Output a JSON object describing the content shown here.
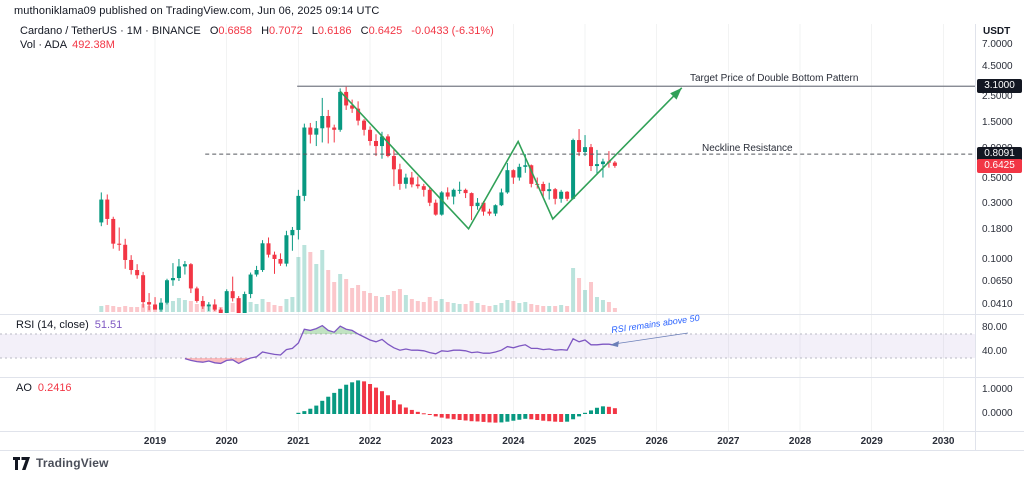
{
  "header": {
    "published": "muthoniklama09 published on TradingView.com, Jun 06, 2025 09:14 UTC",
    "symbol": "Cardano / TetherUS · 1M · BINANCE",
    "ohlc": {
      "o": {
        "label": "O",
        "value": "0.6858"
      },
      "h": {
        "label": "H",
        "value": "0.7072"
      },
      "l": {
        "label": "L",
        "value": "0.6186"
      },
      "c": {
        "label": "C",
        "value": "0.6425"
      }
    },
    "change": "-0.0433 (-6.31%)",
    "vol_label": "Vol · ADA",
    "vol_value": "492.38M"
  },
  "annotations": {
    "target": "Target Price of Double Bottom Pattern",
    "neckline": "Neckline Resistance"
  },
  "panes": {
    "rsi": {
      "label": "RSI (14, close)",
      "value": "51.51",
      "note": "RSI remains above 50",
      "axis": [
        {
          "text": "80.00",
          "v": 80
        },
        {
          "text": "40.00",
          "v": 40
        }
      ]
    },
    "ao": {
      "label": "AO",
      "value": "0.2416",
      "axis": [
        {
          "text": "1.0000",
          "v": 1
        },
        {
          "text": "0.0000",
          "v": 0
        }
      ]
    }
  },
  "price_axis": {
    "currency": "USDT",
    "labels": [
      {
        "text": "7.0000",
        "p": 7.0
      },
      {
        "text": "4.5000",
        "p": 4.5
      },
      {
        "text": "2.5000",
        "p": 2.5
      },
      {
        "text": "1.5000",
        "p": 1.5
      },
      {
        "text": "0.9000",
        "p": 0.9
      },
      {
        "text": "0.5000",
        "p": 0.5
      },
      {
        "text": "0.3000",
        "p": 0.3
      },
      {
        "text": "0.1800",
        "p": 0.18
      },
      {
        "text": "0.1000",
        "p": 0.1
      },
      {
        "text": "0.0650",
        "p": 0.065
      },
      {
        "text": "0.0410",
        "p": 0.041
      }
    ],
    "badges": [
      {
        "text": "3.1000",
        "p": 3.1,
        "bg": "#131722"
      },
      {
        "text": "0.8091",
        "p": 0.8091,
        "bg": "#131722"
      },
      {
        "text": "0.6425",
        "p": 0.6425,
        "bg": "#f23645"
      }
    ]
  },
  "x_axis": {
    "years": [
      "2019",
      "2020",
      "2021",
      "2022",
      "2023",
      "2024",
      "2025",
      "2026",
      "2027",
      "2028",
      "2029",
      "2030"
    ]
  },
  "footer": {
    "brand": "TradingView"
  },
  "colors": {
    "up": "#089981",
    "down": "#f23645",
    "vol_up": "rgba(8,153,129,0.28)",
    "vol_down": "rgba(242,54,69,0.28)",
    "rsi_line": "#7e57c2",
    "rsi_band": "rgba(126,87,194,0.09)",
    "rsi_over": "rgba(76,175,80,0.35)",
    "rsi_under": "rgba(247,124,128,0.5)",
    "drawing_green": "#31a158",
    "note_blue": "#2962ff",
    "target_line": "#787b86",
    "neckline_line": "#56595f",
    "grid": "rgba(42,46,57,0.06)",
    "separator": "#e0e3eb"
  },
  "chart_data": {
    "type": "candlestick",
    "symbol": "ADAUSDT",
    "interval": "1M",
    "scale": "log",
    "start_month": "2018-04",
    "x_years": [
      2019,
      2020,
      2021,
      2022,
      2023,
      2024,
      2025,
      2026,
      2027,
      2028,
      2029,
      2030
    ],
    "levels": {
      "target_price": 3.1,
      "neckline": 0.8091,
      "last_close": 0.6425
    },
    "candles": [
      [
        0.21,
        0.38,
        0.195,
        0.33
      ],
      [
        0.33,
        0.365,
        0.2,
        0.225
      ],
      [
        0.225,
        0.235,
        0.125,
        0.138
      ],
      [
        0.138,
        0.19,
        0.12,
        0.135
      ],
      [
        0.135,
        0.152,
        0.084,
        0.1
      ],
      [
        0.1,
        0.11,
        0.075,
        0.082
      ],
      [
        0.082,
        0.092,
        0.069,
        0.074
      ],
      [
        0.074,
        0.079,
        0.039,
        0.0435
      ],
      [
        0.0435,
        0.052,
        0.037,
        0.0415
      ],
      [
        0.0415,
        0.048,
        0.038,
        0.0375
      ],
      [
        0.0375,
        0.047,
        0.036,
        0.043
      ],
      [
        0.043,
        0.069,
        0.0415,
        0.067
      ],
      [
        0.067,
        0.094,
        0.06,
        0.07
      ],
      [
        0.07,
        0.102,
        0.066,
        0.088
      ],
      [
        0.088,
        0.098,
        0.075,
        0.092
      ],
      [
        0.092,
        0.094,
        0.052,
        0.057
      ],
      [
        0.057,
        0.059,
        0.043,
        0.0445
      ],
      [
        0.0445,
        0.049,
        0.038,
        0.04
      ],
      [
        0.04,
        0.0435,
        0.0365,
        0.0415
      ],
      [
        0.0415,
        0.046,
        0.0365,
        0.0375
      ],
      [
        0.0375,
        0.039,
        0.031,
        0.035
      ],
      [
        0.035,
        0.056,
        0.032,
        0.054
      ],
      [
        0.054,
        0.072,
        0.044,
        0.047
      ],
      [
        0.047,
        0.049,
        0.019,
        0.0305
      ],
      [
        0.0305,
        0.0535,
        0.029,
        0.051
      ],
      [
        0.051,
        0.078,
        0.047,
        0.075
      ],
      [
        0.075,
        0.089,
        0.072,
        0.082
      ],
      [
        0.082,
        0.148,
        0.079,
        0.139
      ],
      [
        0.139,
        0.156,
        0.105,
        0.111
      ],
      [
        0.111,
        0.118,
        0.076,
        0.102
      ],
      [
        0.102,
        0.114,
        0.089,
        0.093
      ],
      [
        0.093,
        0.178,
        0.088,
        0.163
      ],
      [
        0.163,
        0.192,
        0.12,
        0.181
      ],
      [
        0.181,
        0.4,
        0.15,
        0.355
      ],
      [
        0.355,
        1.48,
        0.32,
        1.37
      ],
      [
        1.37,
        1.5,
        1.0,
        1.19
      ],
      [
        1.19,
        1.56,
        0.95,
        1.35
      ],
      [
        1.35,
        2.46,
        1.02,
        1.72
      ],
      [
        1.72,
        1.94,
        1.0,
        1.37
      ],
      [
        1.37,
        1.45,
        1.02,
        1.31
      ],
      [
        1.31,
        2.97,
        1.26,
        2.77
      ],
      [
        2.77,
        3.1,
        1.94,
        2.12
      ],
      [
        2.12,
        2.38,
        1.83,
        1.99
      ],
      [
        1.99,
        2.3,
        1.43,
        1.57
      ],
      [
        1.57,
        1.62,
        1.17,
        1.31
      ],
      [
        1.31,
        1.4,
        0.96,
        1.05
      ],
      [
        1.05,
        1.2,
        0.78,
        0.95
      ],
      [
        0.95,
        1.26,
        0.74,
        1.15
      ],
      [
        1.15,
        1.2,
        0.76,
        0.78
      ],
      [
        0.78,
        0.9,
        0.43,
        0.6
      ],
      [
        0.6,
        0.67,
        0.4,
        0.45
      ],
      [
        0.45,
        0.55,
        0.41,
        0.51
      ],
      [
        0.51,
        0.57,
        0.42,
        0.445
      ],
      [
        0.445,
        0.52,
        0.41,
        0.43
      ],
      [
        0.43,
        0.45,
        0.35,
        0.4
      ],
      [
        0.4,
        0.42,
        0.29,
        0.31
      ],
      [
        0.31,
        0.33,
        0.24,
        0.245
      ],
      [
        0.245,
        0.39,
        0.24,
        0.38
      ],
      [
        0.38,
        0.42,
        0.33,
        0.35
      ],
      [
        0.35,
        0.41,
        0.3,
        0.4
      ],
      [
        0.4,
        0.47,
        0.37,
        0.4
      ],
      [
        0.4,
        0.41,
        0.34,
        0.375
      ],
      [
        0.375,
        0.38,
        0.22,
        0.29
      ],
      [
        0.29,
        0.34,
        0.27,
        0.31
      ],
      [
        0.31,
        0.32,
        0.24,
        0.26
      ],
      [
        0.26,
        0.275,
        0.24,
        0.25
      ],
      [
        0.25,
        0.3,
        0.238,
        0.295
      ],
      [
        0.295,
        0.41,
        0.29,
        0.38
      ],
      [
        0.38,
        0.68,
        0.37,
        0.59
      ],
      [
        0.59,
        0.6,
        0.45,
        0.51
      ],
      [
        0.51,
        0.67,
        0.48,
        0.63
      ],
      [
        0.63,
        0.81,
        0.56,
        0.65
      ],
      [
        0.65,
        0.66,
        0.42,
        0.45
      ],
      [
        0.45,
        0.51,
        0.41,
        0.449
      ],
      [
        0.449,
        0.47,
        0.35,
        0.39
      ],
      [
        0.39,
        0.46,
        0.33,
        0.405
      ],
      [
        0.405,
        0.415,
        0.3,
        0.335
      ],
      [
        0.335,
        0.4,
        0.31,
        0.385
      ],
      [
        0.385,
        0.39,
        0.32,
        0.335
      ],
      [
        0.335,
        1.1,
        0.33,
        1.07
      ],
      [
        1.07,
        1.33,
        0.78,
        0.845
      ],
      [
        0.845,
        1.18,
        0.78,
        0.93
      ],
      [
        0.93,
        0.99,
        0.58,
        0.64
      ],
      [
        0.64,
        0.88,
        0.55,
        0.665
      ],
      [
        0.665,
        0.74,
        0.51,
        0.7
      ],
      [
        0.7,
        0.86,
        0.62,
        0.685
      ],
      [
        0.6858,
        0.7072,
        0.6186,
        0.6425
      ]
    ],
    "volume_rel": [
      6,
      7,
      6,
      5,
      6,
      5,
      5,
      8,
      6,
      7,
      8,
      12,
      11,
      14,
      12,
      11,
      8,
      7,
      6,
      7,
      5,
      11,
      9,
      14,
      10,
      10,
      8,
      13,
      10,
      7,
      6,
      13,
      15,
      55,
      67,
      60,
      48,
      62,
      42,
      30,
      38,
      33,
      24,
      27,
      21,
      19,
      16,
      15,
      17,
      21,
      23,
      17,
      13,
      11,
      10,
      15,
      11,
      13,
      10,
      9,
      8,
      8,
      11,
      9,
      7,
      6,
      7,
      9,
      12,
      11,
      9,
      10,
      8,
      7,
      6,
      6,
      6,
      7,
      6,
      44,
      34,
      22,
      30,
      15,
      12,
      10,
      4
    ],
    "rsi": [
      null,
      null,
      null,
      null,
      null,
      null,
      null,
      null,
      null,
      null,
      null,
      null,
      null,
      null,
      29,
      26,
      24,
      23,
      25,
      22,
      21,
      26,
      27,
      21,
      26,
      30,
      32,
      40,
      38,
      36,
      35,
      44,
      46,
      55,
      78,
      76,
      79,
      84,
      76,
      73,
      83,
      78,
      76,
      70,
      65,
      60,
      57,
      61,
      53,
      47,
      43,
      45,
      43,
      43,
      42,
      39,
      37,
      42,
      41,
      43,
      43,
      42,
      39,
      40,
      38,
      38,
      40,
      43,
      49,
      47,
      50,
      52,
      46,
      46,
      44,
      45,
      43,
      44,
      43,
      62,
      57,
      60,
      52,
      52,
      53,
      53,
      51.51
    ],
    "rsi_levels": {
      "upper": 70,
      "lower": 30
    },
    "ao": [
      null,
      null,
      null,
      null,
      null,
      null,
      null,
      null,
      null,
      null,
      null,
      null,
      null,
      null,
      null,
      null,
      null,
      null,
      null,
      null,
      null,
      null,
      null,
      null,
      null,
      null,
      null,
      null,
      null,
      null,
      null,
      null,
      null,
      0.05,
      0.12,
      0.22,
      0.35,
      0.55,
      0.72,
      0.88,
      1.05,
      1.22,
      1.32,
      1.4,
      1.36,
      1.25,
      1.1,
      0.95,
      0.78,
      0.58,
      0.4,
      0.27,
      0.17,
      0.09,
      0.03,
      -0.04,
      -0.1,
      -0.15,
      -0.19,
      -0.22,
      -0.25,
      -0.27,
      -0.3,
      -0.31,
      -0.33,
      -0.35,
      -0.36,
      -0.35,
      -0.32,
      -0.28,
      -0.24,
      -0.2,
      -0.22,
      -0.25,
      -0.28,
      -0.3,
      -0.32,
      -0.33,
      -0.32,
      -0.22,
      -0.1,
      0.05,
      0.15,
      0.26,
      0.32,
      0.3,
      0.2416
    ],
    "drawing": {
      "zigzag_points": [
        {
          "i": 40.0,
          "p": 2.8
        },
        {
          "i": 61.5,
          "p": 0.185
        },
        {
          "i": 69.8,
          "p": 1.04
        },
        {
          "i": 75.6,
          "p": 0.225
        },
        {
          "i": 97.2,
          "p": 3.0
        }
      ],
      "target_line_from_i": 32.8,
      "neckline_from_i": 17.4
    }
  }
}
